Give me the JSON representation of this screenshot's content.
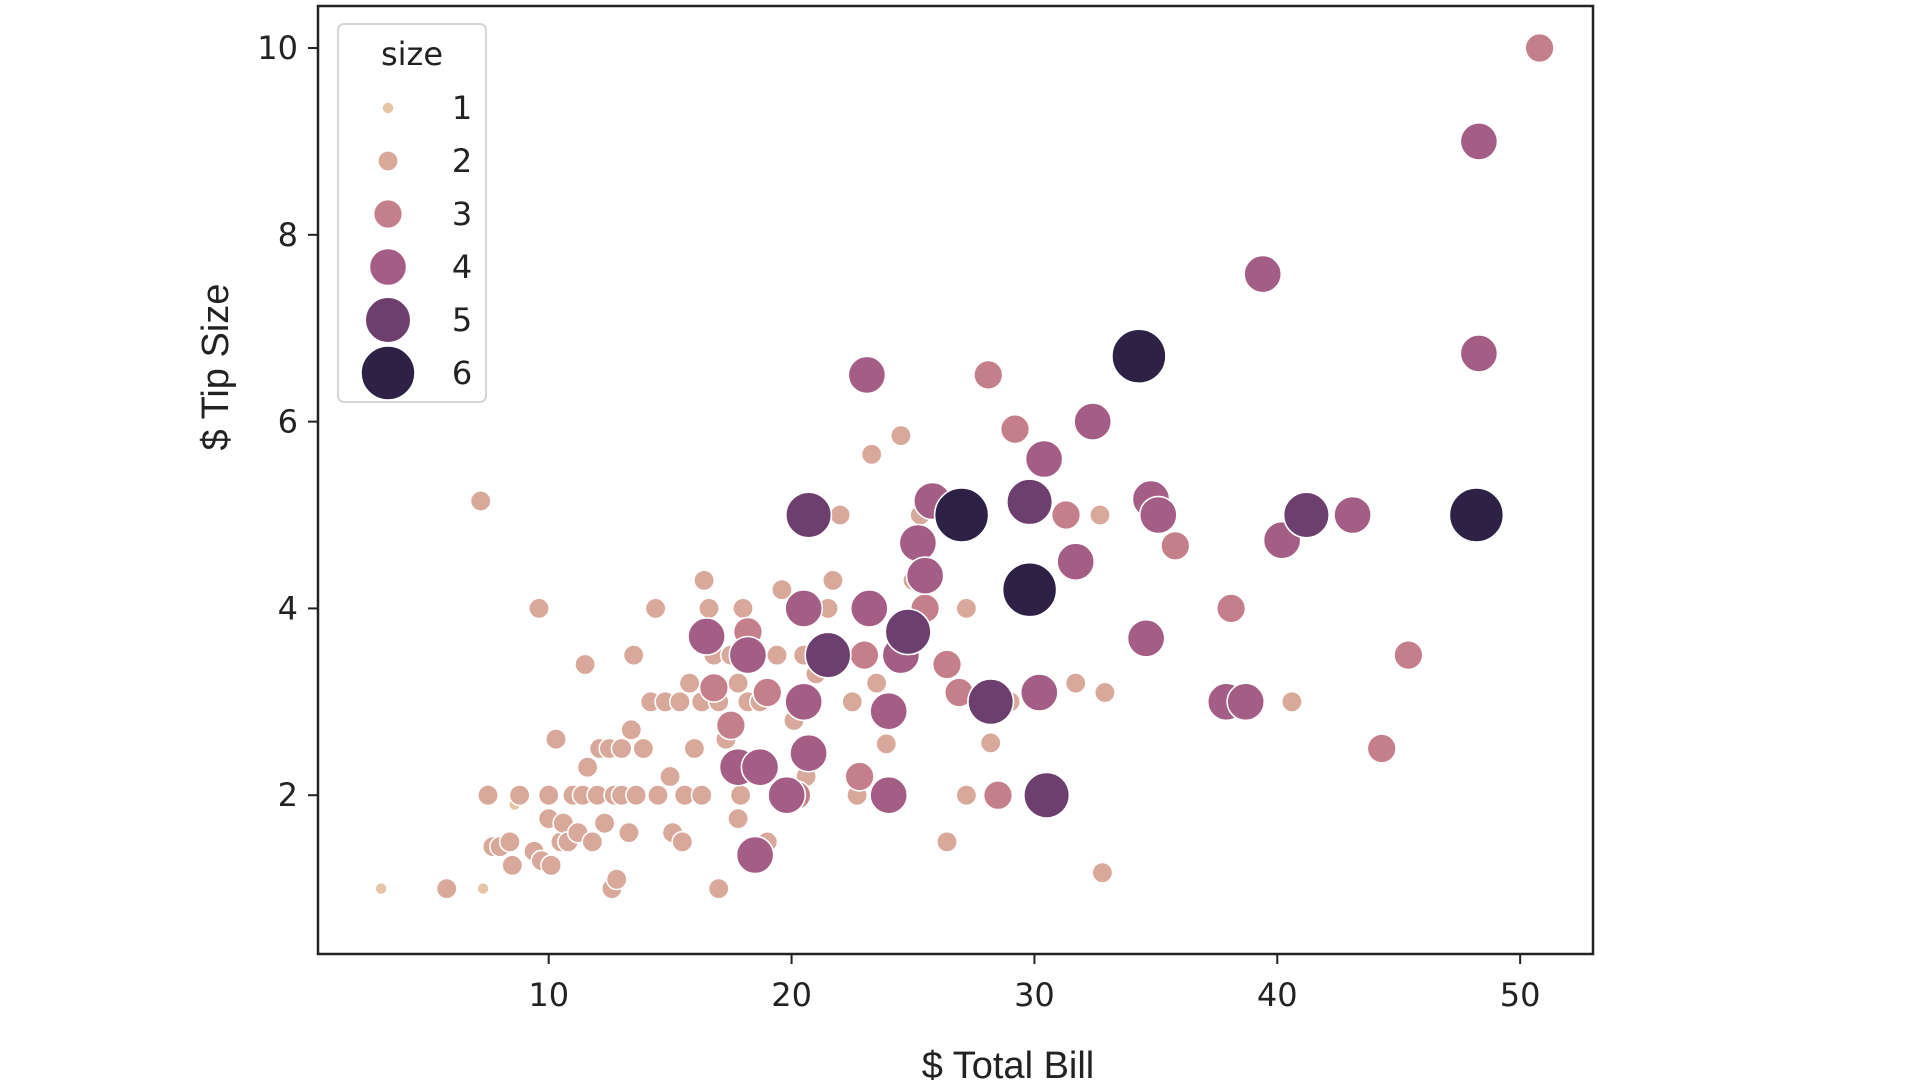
{
  "chart_data": {
    "type": "scatter",
    "title": "",
    "xlabel": "$ Total Bill",
    "ylabel": "$ Tip Size",
    "xlim": [
      0.5,
      53.0
    ],
    "ylim": [
      0.3,
      10.45
    ],
    "xticks": [
      10,
      20,
      30,
      40,
      50
    ],
    "yticks": [
      2,
      4,
      6,
      8,
      10
    ],
    "grid": false,
    "legend": {
      "title": "size",
      "placement": "top-left",
      "entries": [
        {
          "label": "1",
          "size": 1
        },
        {
          "label": "2",
          "size": 2
        },
        {
          "label": "3",
          "size": 3
        },
        {
          "label": "4",
          "size": 4
        },
        {
          "label": "5",
          "size": 5
        },
        {
          "label": "6",
          "size": 6
        }
      ]
    },
    "colors": {
      "1": "#e6c5a6",
      "2": "#d8a89a",
      "3": "#c47f8a",
      "4": "#a45d85",
      "5": "#6d3f6e",
      "6": "#2d2146"
    },
    "points": [
      [
        3.1,
        1.0,
        1
      ],
      [
        7.3,
        1.0,
        1
      ],
      [
        8.6,
        1.9,
        1
      ],
      [
        5.8,
        1.0,
        2
      ],
      [
        7.2,
        5.15,
        2
      ],
      [
        7.5,
        2.0,
        2
      ],
      [
        7.7,
        1.45,
        2
      ],
      [
        8.0,
        1.45,
        2
      ],
      [
        8.4,
        1.5,
        2
      ],
      [
        8.5,
        1.25,
        2
      ],
      [
        8.8,
        2.0,
        2
      ],
      [
        9.4,
        1.4,
        2
      ],
      [
        9.6,
        4.0,
        2
      ],
      [
        9.7,
        1.3,
        2
      ],
      [
        10.0,
        1.75,
        2
      ],
      [
        10.0,
        2.0,
        2
      ],
      [
        10.1,
        1.25,
        2
      ],
      [
        10.3,
        2.6,
        2
      ],
      [
        10.5,
        1.5,
        2
      ],
      [
        10.6,
        1.7,
        2
      ],
      [
        10.8,
        1.5,
        2
      ],
      [
        11.0,
        2.0,
        2
      ],
      [
        11.2,
        1.6,
        2
      ],
      [
        11.4,
        2.0,
        2
      ],
      [
        11.5,
        3.4,
        2
      ],
      [
        11.6,
        2.3,
        2
      ],
      [
        11.8,
        1.5,
        2
      ],
      [
        12.0,
        2.0,
        2
      ],
      [
        12.1,
        2.5,
        2
      ],
      [
        12.3,
        1.7,
        2
      ],
      [
        12.5,
        2.5,
        2
      ],
      [
        12.6,
        1.0,
        2
      ],
      [
        12.7,
        2.0,
        2
      ],
      [
        12.8,
        1.1,
        2
      ],
      [
        13.0,
        2.0,
        2
      ],
      [
        13.0,
        2.5,
        2
      ],
      [
        13.3,
        1.6,
        2
      ],
      [
        13.4,
        2.7,
        2
      ],
      [
        13.5,
        3.5,
        2
      ],
      [
        13.6,
        2.0,
        2
      ],
      [
        13.9,
        2.5,
        2
      ],
      [
        14.2,
        3.0,
        2
      ],
      [
        14.4,
        4.0,
        2
      ],
      [
        14.5,
        2.0,
        2
      ],
      [
        14.8,
        3.0,
        2
      ],
      [
        15.0,
        2.2,
        2
      ],
      [
        15.1,
        1.6,
        2
      ],
      [
        15.4,
        3.0,
        2
      ],
      [
        15.5,
        1.5,
        2
      ],
      [
        15.6,
        2.0,
        2
      ],
      [
        15.8,
        3.2,
        2
      ],
      [
        16.0,
        2.5,
        2
      ],
      [
        16.3,
        2.0,
        2
      ],
      [
        16.3,
        3.0,
        2
      ],
      [
        16.4,
        4.3,
        2
      ],
      [
        16.6,
        4.0,
        2
      ],
      [
        16.8,
        3.5,
        2
      ],
      [
        17.0,
        1.0,
        2
      ],
      [
        17.0,
        3.0,
        2
      ],
      [
        17.3,
        2.6,
        2
      ],
      [
        17.5,
        3.5,
        2
      ],
      [
        17.8,
        1.75,
        2
      ],
      [
        17.8,
        3.2,
        2
      ],
      [
        17.9,
        2.0,
        2
      ],
      [
        18.0,
        4.0,
        2
      ],
      [
        18.2,
        3.0,
        2
      ],
      [
        18.4,
        3.5,
        2
      ],
      [
        18.7,
        3.0,
        2
      ],
      [
        19.0,
        1.5,
        2
      ],
      [
        19.4,
        3.5,
        2
      ],
      [
        19.6,
        4.2,
        2
      ],
      [
        19.8,
        2.0,
        2
      ],
      [
        20.1,
        2.8,
        2
      ],
      [
        20.3,
        4.0,
        2
      ],
      [
        20.5,
        3.5,
        2
      ],
      [
        20.6,
        2.2,
        2
      ],
      [
        20.9,
        2.5,
        2
      ],
      [
        21.0,
        3.3,
        2
      ],
      [
        21.5,
        4.0,
        2
      ],
      [
        21.7,
        4.3,
        2
      ],
      [
        22.0,
        5.0,
        2
      ],
      [
        22.2,
        3.5,
        2
      ],
      [
        22.5,
        3.0,
        2
      ],
      [
        22.7,
        2.0,
        2
      ],
      [
        23.3,
        5.65,
        2
      ],
      [
        23.5,
        3.2,
        2
      ],
      [
        23.9,
        2.55,
        2
      ],
      [
        24.5,
        5.85,
        2
      ],
      [
        25.0,
        4.3,
        2
      ],
      [
        25.3,
        5.0,
        2
      ],
      [
        26.4,
        1.5,
        2
      ],
      [
        27.2,
        2.0,
        2
      ],
      [
        27.2,
        4.0,
        2
      ],
      [
        28.2,
        2.56,
        2
      ],
      [
        29.0,
        3.0,
        2
      ],
      [
        31.7,
        3.2,
        2
      ],
      [
        32.7,
        5.0,
        2
      ],
      [
        32.8,
        1.17,
        2
      ],
      [
        32.9,
        3.1,
        2
      ],
      [
        40.6,
        3.0,
        2
      ],
      [
        16.8,
        3.15,
        3
      ],
      [
        17.5,
        2.75,
        3
      ],
      [
        18.2,
        3.75,
        3
      ],
      [
        19.0,
        3.1,
        3
      ],
      [
        20.2,
        2.0,
        3
      ],
      [
        21.2,
        3.5,
        3
      ],
      [
        22.8,
        2.2,
        3
      ],
      [
        23.0,
        3.5,
        3
      ],
      [
        25.5,
        4.0,
        3
      ],
      [
        26.4,
        3.4,
        3
      ],
      [
        26.9,
        3.1,
        3
      ],
      [
        28.1,
        6.5,
        3
      ],
      [
        28.5,
        2.0,
        3
      ],
      [
        29.2,
        5.92,
        3
      ],
      [
        30.1,
        2.0,
        3
      ],
      [
        31.3,
        5.0,
        3
      ],
      [
        34.6,
        5.2,
        3
      ],
      [
        35.8,
        4.67,
        3
      ],
      [
        38.1,
        4.0,
        3
      ],
      [
        44.3,
        2.5,
        3
      ],
      [
        45.4,
        3.5,
        3
      ],
      [
        50.8,
        10.0,
        3
      ],
      [
        16.5,
        3.7,
        4
      ],
      [
        17.8,
        2.3,
        4
      ],
      [
        18.2,
        3.5,
        4
      ],
      [
        18.5,
        1.36,
        4
      ],
      [
        18.7,
        2.3,
        4
      ],
      [
        19.8,
        2.0,
        4
      ],
      [
        20.5,
        4.0,
        4
      ],
      [
        20.5,
        3.0,
        4
      ],
      [
        20.7,
        2.45,
        4
      ],
      [
        23.1,
        6.5,
        4
      ],
      [
        23.2,
        4.0,
        4
      ],
      [
        24.0,
        2.0,
        4
      ],
      [
        24.5,
        3.5,
        4
      ],
      [
        24.0,
        2.9,
        4
      ],
      [
        25.2,
        4.7,
        4
      ],
      [
        25.5,
        4.35,
        4
      ],
      [
        25.8,
        5.15,
        4
      ],
      [
        30.4,
        5.6,
        4
      ],
      [
        30.2,
        3.1,
        4
      ],
      [
        31.7,
        4.5,
        4
      ],
      [
        32.4,
        6.0,
        4
      ],
      [
        34.6,
        3.68,
        4
      ],
      [
        34.8,
        5.17,
        4
      ],
      [
        35.1,
        5.0,
        4
      ],
      [
        37.9,
        3.0,
        4
      ],
      [
        38.7,
        3.0,
        4
      ],
      [
        39.4,
        7.58,
        4
      ],
      [
        40.2,
        4.73,
        4
      ],
      [
        43.1,
        5.0,
        4
      ],
      [
        48.3,
        9.0,
        4
      ],
      [
        48.3,
        6.73,
        4
      ],
      [
        20.7,
        5.0,
        5
      ],
      [
        21.5,
        3.5,
        5
      ],
      [
        24.8,
        3.75,
        5
      ],
      [
        28.2,
        3.0,
        5
      ],
      [
        29.8,
        5.14,
        5
      ],
      [
        30.5,
        2.0,
        5
      ],
      [
        41.2,
        5.0,
        5
      ],
      [
        27.0,
        5.0,
        6
      ],
      [
        29.8,
        4.2,
        6
      ],
      [
        34.3,
        6.7,
        6
      ],
      [
        48.2,
        5.0,
        6
      ]
    ]
  }
}
